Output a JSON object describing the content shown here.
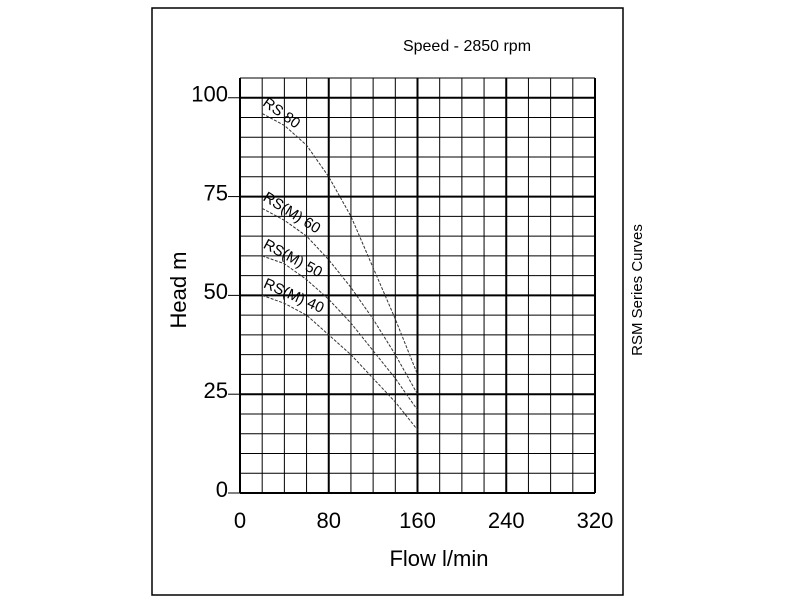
{
  "chart_data": {
    "type": "line",
    "title": "Speed - 2850 rpm",
    "side_label": "RSM Series Curves",
    "x_label": "Flow l/min",
    "y_label": "Head m",
    "x": [
      20,
      40,
      60,
      80,
      100,
      120,
      140,
      160
    ],
    "series": [
      {
        "name": "RS 80",
        "color": "#333333",
        "values": [
          96,
          93,
          88,
          80,
          70,
          57,
          44,
          30
        ]
      },
      {
        "name": "RS(M) 60",
        "color": "#333333",
        "values": [
          72,
          69,
          65,
          59,
          52,
          44,
          35,
          25
        ]
      },
      {
        "name": "RS(M) 50",
        "color": "#333333",
        "values": [
          60,
          58,
          54,
          49,
          43,
          36,
          29,
          21
        ]
      },
      {
        "name": "RS(M) 40",
        "color": "#333333",
        "values": [
          50,
          48,
          45,
          40,
          35,
          29,
          23,
          16
        ]
      }
    ],
    "xlim": [
      0,
      320
    ],
    "xticks": [
      0,
      80,
      160,
      240,
      320
    ],
    "ylim": [
      0,
      105
    ],
    "yticks": [
      0,
      25,
      50,
      75,
      100
    ],
    "grid": true
  }
}
